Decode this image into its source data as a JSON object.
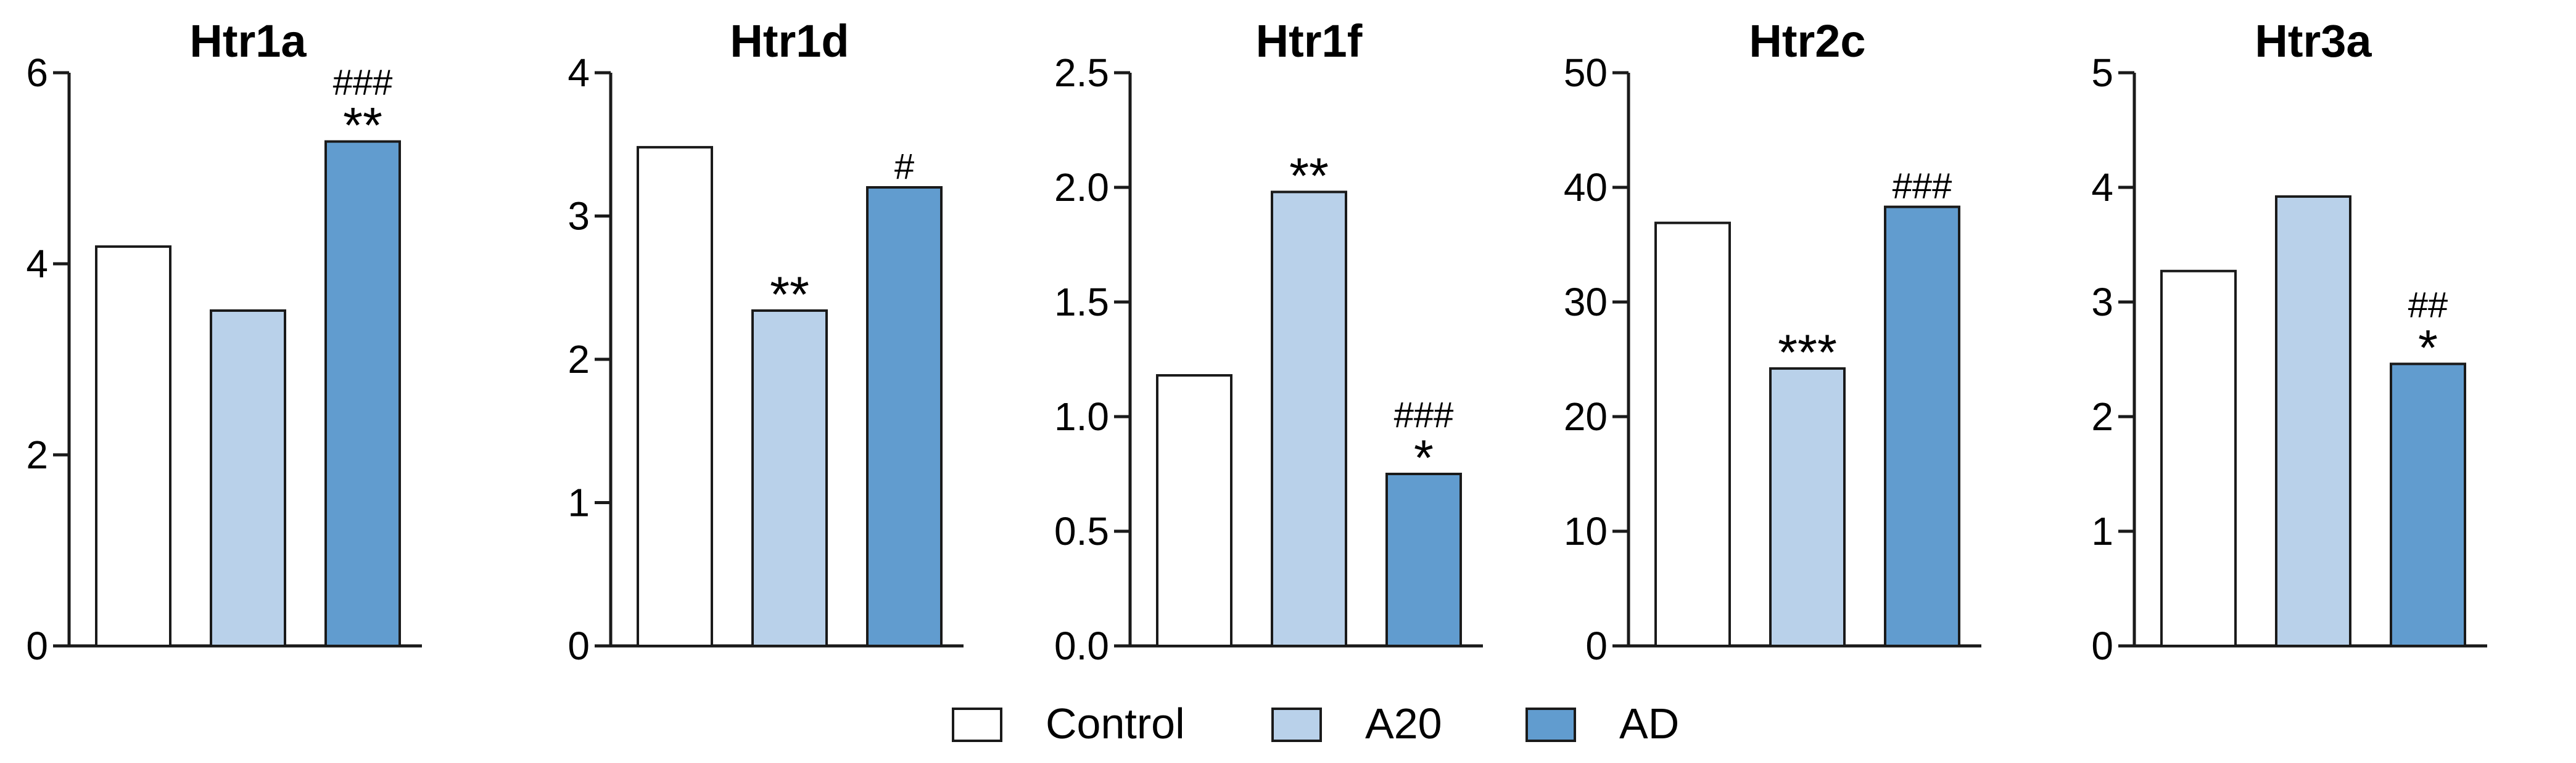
{
  "chart_data": [
    {
      "type": "bar",
      "title": "Htr1a",
      "categories": [
        "Control",
        "A20",
        "AD"
      ],
      "values": [
        4.18,
        3.51,
        5.28
      ],
      "ylim": [
        0,
        6
      ],
      "yticks": [
        "0",
        "2",
        "4",
        "6"
      ],
      "xlabel": "",
      "ylabel": "",
      "annotations": [
        {
          "category": "A20",
          "hash": "",
          "star": ""
        },
        {
          "category": "AD",
          "hash": "###",
          "star": "**"
        }
      ]
    },
    {
      "type": "bar",
      "title": "Htr1d",
      "categories": [
        "Control",
        "A20",
        "AD"
      ],
      "values": [
        3.48,
        2.34,
        3.2
      ],
      "ylim": [
        0,
        4
      ],
      "yticks": [
        "0",
        "1",
        "2",
        "3",
        "4"
      ],
      "xlabel": "",
      "ylabel": "",
      "annotations": [
        {
          "category": "A20",
          "hash": "",
          "star": "**"
        },
        {
          "category": "AD",
          "hash": "#",
          "star": ""
        }
      ]
    },
    {
      "type": "bar",
      "title": "Htr1f",
      "categories": [
        "Control",
        "A20",
        "AD"
      ],
      "values": [
        1.18,
        1.98,
        0.75
      ],
      "ylim": [
        0,
        2.5
      ],
      "yticks": [
        "0.0",
        "0.5",
        "1.0",
        "1.5",
        "2.0",
        "2.5"
      ],
      "xlabel": "",
      "ylabel": "",
      "annotations": [
        {
          "category": "A20",
          "hash": "",
          "star": "**"
        },
        {
          "category": "AD",
          "hash": "###",
          "star": "*"
        }
      ]
    },
    {
      "type": "bar",
      "title": "Htr2c",
      "categories": [
        "Control",
        "A20",
        "AD"
      ],
      "values": [
        36.9,
        24.2,
        38.3
      ],
      "ylim": [
        0,
        50
      ],
      "yticks": [
        "0",
        "10",
        "20",
        "30",
        "40",
        "50"
      ],
      "xlabel": "",
      "ylabel": "",
      "annotations": [
        {
          "category": "A20",
          "hash": "",
          "star": "***"
        },
        {
          "category": "AD",
          "hash": "###",
          "star": ""
        }
      ]
    },
    {
      "type": "bar",
      "title": "Htr3a",
      "categories": [
        "Control",
        "A20",
        "AD"
      ],
      "values": [
        3.27,
        3.92,
        2.46
      ],
      "ylim": [
        0,
        5
      ],
      "yticks": [
        "0",
        "1",
        "2",
        "3",
        "4",
        "5"
      ],
      "xlabel": "",
      "ylabel": "",
      "annotations": [
        {
          "category": "A20",
          "hash": "",
          "star": ""
        },
        {
          "category": "AD",
          "hash": "##",
          "star": "*"
        }
      ]
    }
  ],
  "legend": {
    "placement": "bottom-center",
    "items": [
      {
        "label": "Control",
        "color": "#ffffff"
      },
      {
        "label": "A20",
        "color": "#b9d1ea"
      },
      {
        "label": "AD",
        "color": "#619ccf"
      }
    ]
  },
  "colors": {
    "Control": "#ffffff",
    "A20": "#b9d1ea",
    "AD": "#619ccf",
    "stroke": "#1a1a1a"
  }
}
